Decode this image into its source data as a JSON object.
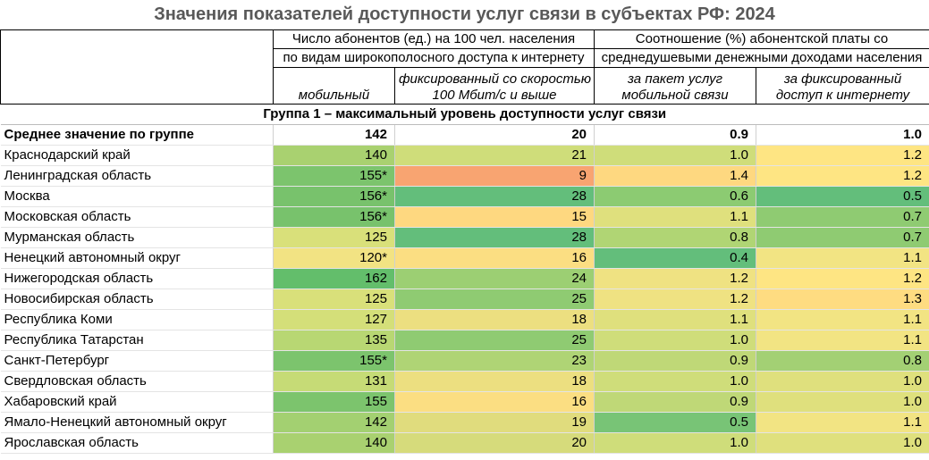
{
  "title": "Значения показателей доступности услуг связи в субъектах РФ: 2024",
  "header": {
    "group_a": [
      "Число абонентов (ед.) на 100 чел. населения",
      "по видам широкополосного доступа к интернету"
    ],
    "group_b": [
      "Соотношение (%) абонентской платы со",
      "среднедушевыми денежными доходами населения"
    ],
    "columns": [
      [
        "мобильный"
      ],
      [
        "фиксированный со скоростью",
        "100 Мбит/с и выше"
      ],
      [
        "за пакет услуг",
        "мобильной связи"
      ],
      [
        "за фиксированный",
        "доступ к интернету"
      ]
    ]
  },
  "group_title": "Группа 1 – максимальный уровень доступности услуг связи",
  "average": {
    "name": "Среднее значение по группе",
    "cells": [
      "142",
      "20",
      "0.9",
      "1.0"
    ]
  },
  "rows": [
    {
      "name": "Краснодарский край",
      "cells": [
        "140",
        "21",
        "1.0",
        "1.2"
      ],
      "colors": [
        "#a9d170",
        "#cfdd7a",
        "#cfdd7a",
        "#fee583"
      ]
    },
    {
      "name": "Ленинградская область",
      "cells": [
        "155*",
        "9",
        "1.4",
        "1.2"
      ],
      "colors": [
        "#7cc46d",
        "#f8a471",
        "#fed880",
        "#fee583"
      ]
    },
    {
      "name": "Москва",
      "cells": [
        "156*",
        "28",
        "0.6",
        "0.5"
      ],
      "colors": [
        "#78c26c",
        "#63be7b",
        "#8ccb72",
        "#63be7b"
      ]
    },
    {
      "name": "Московская область",
      "cells": [
        "156*",
        "15",
        "1.1",
        "0.7"
      ],
      "colors": [
        "#78c26c",
        "#fed880",
        "#dfe07d",
        "#8fcb72"
      ]
    },
    {
      "name": "Мурманская область",
      "cells": [
        "125",
        "28",
        "0.8",
        "0.7"
      ],
      "colors": [
        "#d9e07a",
        "#63be7b",
        "#b0d574",
        "#8fcb72"
      ]
    },
    {
      "name": "Ненецкий автономный округ",
      "cells": [
        "120*",
        "16",
        "0.4",
        "1.1"
      ],
      "colors": [
        "#f2e383",
        "#fbde82",
        "#63be7b",
        "#f2e483"
      ]
    },
    {
      "name": "Нижегородская область",
      "cells": [
        "162",
        "24",
        "1.2",
        "1.2"
      ],
      "colors": [
        "#63be6b",
        "#9ccf73",
        "#efe282",
        "#fee583"
      ]
    },
    {
      "name": "Новосибирская область",
      "cells": [
        "125",
        "25",
        "1.2",
        "1.3"
      ],
      "colors": [
        "#d9e07a",
        "#8fcb72",
        "#efe282",
        "#fedc81"
      ]
    },
    {
      "name": "Республика Коми",
      "cells": [
        "127",
        "18",
        "1.1",
        "1.1"
      ],
      "colors": [
        "#d4df79",
        "#ecdf80",
        "#dfe07d",
        "#f2e483"
      ]
    },
    {
      "name": "Республика Татарстан",
      "cells": [
        "135",
        "25",
        "1.0",
        "1.1"
      ],
      "colors": [
        "#b8d773",
        "#8fcb72",
        "#cfdd7a",
        "#f2e483"
      ]
    },
    {
      "name": "Санкт-Петербург",
      "cells": [
        "155*",
        "23",
        "0.9",
        "0.8"
      ],
      "colors": [
        "#7cc46d",
        "#afd475",
        "#bfd877",
        "#a3d074"
      ]
    },
    {
      "name": "Свердловская область",
      "cells": [
        "131",
        "18",
        "1.0",
        "1.0"
      ],
      "colors": [
        "#c6db76",
        "#ecdf80",
        "#cfdd7a",
        "#dfe07d"
      ]
    },
    {
      "name": "Хабаровский край",
      "cells": [
        "155",
        "16",
        "0.9",
        "1.0"
      ],
      "colors": [
        "#7cc46d",
        "#fbde82",
        "#bfd877",
        "#dfe07d"
      ]
    },
    {
      "name": "Ямало-Ненецкий автономный округ",
      "cells": [
        "142",
        "19",
        "0.5",
        "1.1"
      ],
      "colors": [
        "#a3d071",
        "#e0dc7d",
        "#78c476",
        "#f2e483"
      ]
    },
    {
      "name": "Ярославская область",
      "cells": [
        "140",
        "20",
        "1.0",
        "1.0"
      ],
      "colors": [
        "#a9d170",
        "#d6db7b",
        "#cfdd7a",
        "#dfe07d"
      ]
    }
  ]
}
